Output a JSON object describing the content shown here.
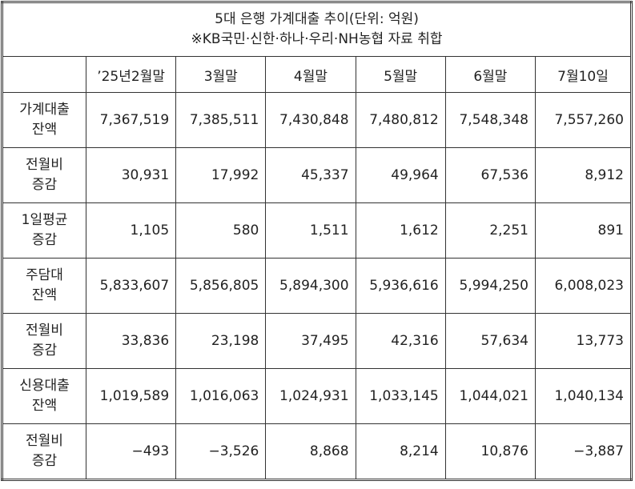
{
  "title": [
    "5대 은행 가계대출 추이(단위: 억원)",
    "※KB국민·신한·하나·우리·NH농협 자료 취합"
  ],
  "table": {
    "header": [
      "’25년2월말",
      "3월말",
      "4월말",
      "5월말",
      "6월말",
      "7월10일"
    ],
    "rows": [
      {
        "label": [
          "가계대출",
          "잔액"
        ],
        "cells": [
          "7,367,519",
          "7,385,511",
          "7,430,848",
          "7,480,812",
          "7,548,348",
          "7,557,260"
        ]
      },
      {
        "label": [
          "전월비",
          "증감"
        ],
        "cells": [
          "30,931",
          "17,992",
          "45,337",
          "49,964",
          "67,536",
          "8,912"
        ]
      },
      {
        "label": [
          "1일평균",
          "증감"
        ],
        "cells": [
          "1,105",
          "580",
          "1,511",
          "1,612",
          "2,251",
          "891"
        ]
      },
      {
        "label": [
          "주담대",
          "잔액"
        ],
        "cells": [
          "5,833,607",
          "5,856,805",
          "5,894,300",
          "5,936,616",
          "5,994,250",
          "6,008,023"
        ]
      },
      {
        "label": [
          "전월비",
          "증감"
        ],
        "cells": [
          "33,836",
          "23,198",
          "37,495",
          "42,316",
          "57,634",
          "13,773"
        ]
      },
      {
        "label": [
          "신용대출",
          "잔액"
        ],
        "cells": [
          "1,019,589",
          "1,016,063",
          "1,024,931",
          "1,033,145",
          "1,044,021",
          "1,040,134"
        ]
      },
      {
        "label": [
          "전월비",
          "증감"
        ],
        "cells": [
          "−493",
          "−3,526",
          "8,868",
          "8,214",
          "10,876",
          "−3,887"
        ]
      }
    ]
  }
}
